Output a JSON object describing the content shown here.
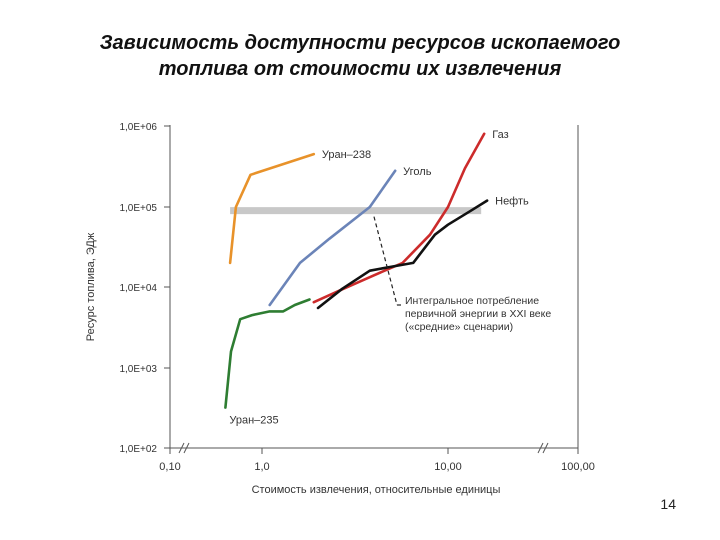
{
  "slide": {
    "title_line1": "Зависимость доступности ресурсов ископаемого",
    "title_line2": "топлива от стоимости их извлечения",
    "page_number": "14"
  },
  "chart_data": {
    "type": "line",
    "title": "Зависимость доступности ресурсов ископаемого топлива от стоимости их извлечения",
    "xlabel": "Стоимость извлечения, относительные единицы",
    "ylabel": "Ресурс топлива, ЭДж",
    "x_scale": "log",
    "y_scale": "log",
    "xlim": [
      0.1,
      100
    ],
    "ylim": [
      100,
      1000000
    ],
    "x_ticks": [
      {
        "value": 0.1,
        "label": "0,10"
      },
      {
        "value": 1,
        "label": "1,0"
      },
      {
        "value": 10,
        "label": "10,00"
      },
      {
        "value": 100,
        "label": "100,00"
      }
    ],
    "y_ticks": [
      {
        "value": 100,
        "label": "1,0E+02"
      },
      {
        "value": 1000,
        "label": "1,0E+03"
      },
      {
        "value": 10000,
        "label": "1,0E+04"
      },
      {
        "value": 100000,
        "label": "1,0E+05"
      },
      {
        "value": 1000000,
        "label": "1,0E+06"
      }
    ],
    "grid": false,
    "band": {
      "y": 90000,
      "x_start": 0.45,
      "x_end": 18
    },
    "series": [
      {
        "name": "Уран–238",
        "color": "#e8922a",
        "x": [
          0.45,
          0.52,
          0.75,
          1.9
        ],
        "y": [
          20000,
          100000,
          250000,
          450000
        ]
      },
      {
        "name": "Уголь",
        "color": "#6b84b8",
        "x": [
          1.1,
          1.6,
          2.3,
          3.8,
          5.2
        ],
        "y": [
          6000,
          20000,
          40000,
          100000,
          280000
        ]
      },
      {
        "name": "Газ",
        "color": "#cc2b2b",
        "x": [
          1.9,
          2.6,
          4.0,
          5.7,
          8.0,
          10.0,
          13.5,
          19.0
        ],
        "y": [
          6500,
          9000,
          14000,
          20000,
          45000,
          100000,
          300000,
          800000
        ]
      },
      {
        "name": "Нефть",
        "color": "#111111",
        "x": [
          2.0,
          2.7,
          3.8,
          5.0,
          6.5,
          8.5,
          10.0,
          15.0,
          20.0
        ],
        "y": [
          5500,
          9500,
          16000,
          18000,
          20000,
          45000,
          60000,
          90000,
          120000
        ]
      },
      {
        "name": "Уран–235",
        "color": "#2e7d32",
        "x": [
          0.4,
          0.46,
          0.58,
          0.78,
          1.1,
          1.3,
          1.5,
          1.8
        ],
        "y": [
          320,
          1600,
          4000,
          4500,
          5000,
          5000,
          6000,
          7000
        ]
      }
    ],
    "annotations": [
      {
        "text_lines": [
          "Интегральное потребление",
          "первичной энергии в XXI веке",
          "(«средние» сценарии)"
        ],
        "points_to": {
          "x": 4.0,
          "y": 90000
        }
      }
    ]
  }
}
